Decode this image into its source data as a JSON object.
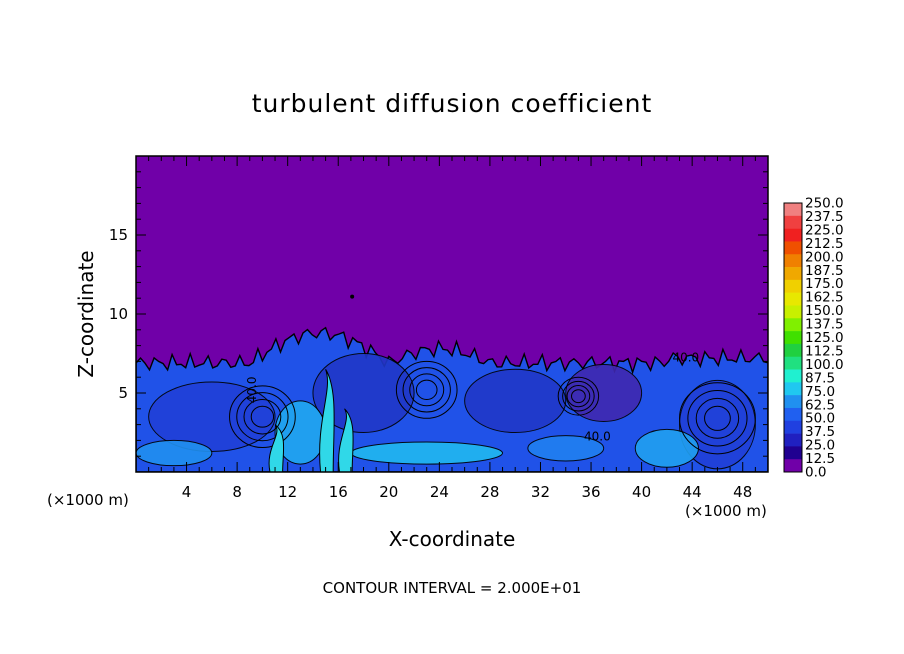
{
  "chart_data": {
    "type": "heatmap",
    "title": "turbulent diffusion coefficient",
    "xlabel": "X-coordinate",
    "ylabel": "Z-coordinate",
    "x_unit_left": "(×1000 m)",
    "x_unit_right": "(×1000 m)",
    "xlim": [
      0,
      50
    ],
    "ylim": [
      0,
      20
    ],
    "x_ticks": [
      4,
      8,
      12,
      16,
      20,
      24,
      28,
      32,
      36,
      40,
      44,
      48
    ],
    "y_ticks": [
      5,
      10,
      15
    ],
    "contour_interval_text": "CONTOUR INTERVAL = 2.000E+01",
    "contour_labels": [
      "40.0",
      "40.0",
      "40.0"
    ],
    "colorbar": {
      "labels": [
        "250.0",
        "237.5",
        "225.0",
        "212.5",
        "200.0",
        "187.5",
        "175.0",
        "162.5",
        "150.0",
        "137.5",
        "125.0",
        "112.5",
        "100.0",
        "87.5",
        "75.0",
        "62.5",
        "50.0",
        "37.5",
        "25.0",
        "12.5",
        "0.0"
      ],
      "colors": [
        "#f08080",
        "#f04040",
        "#f02020",
        "#f05000",
        "#f08000",
        "#f0a800",
        "#f0d000",
        "#e8e800",
        "#c8f000",
        "#80f000",
        "#40e000",
        "#20d040",
        "#20e080",
        "#20f0d0",
        "#20c8f0",
        "#2090f0",
        "#2060f0",
        "#2040e0",
        "#2020c0",
        "#200090",
        "#7000a8"
      ]
    },
    "background_color": "#7000a8",
    "turbulent_layer_top_approx": 8
  }
}
